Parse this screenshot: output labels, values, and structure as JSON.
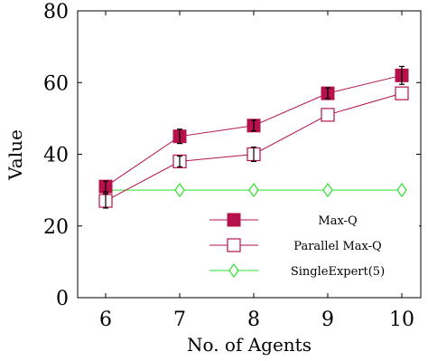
{
  "chart_data": {
    "type": "line",
    "xlabel": "No. of Agents",
    "ylabel": "Value",
    "x": [
      6,
      7,
      8,
      9,
      10
    ],
    "xlim": [
      6,
      10
    ],
    "ylim": [
      0,
      80
    ],
    "yticks": [
      0,
      20,
      40,
      60,
      80
    ],
    "grid": false,
    "legend_position": "bottom-right",
    "series": [
      {
        "name": "Max-Q",
        "marker": "filled-square",
        "color": "#b5124c",
        "values": [
          31,
          45,
          48,
          57,
          62
        ],
        "error": [
          1.5,
          2,
          1.5,
          1.5,
          2.5
        ]
      },
      {
        "name": "Parallel Max-Q",
        "marker": "open-square",
        "color": "#b5124c",
        "values": [
          27,
          38,
          40,
          51,
          57
        ],
        "error": [
          2,
          1.5,
          2,
          0,
          0
        ]
      },
      {
        "name": "SingleExpert(5)",
        "marker": "open-diamond",
        "color": "#2ee02e",
        "values": [
          30,
          30,
          30,
          30,
          30
        ],
        "error": [
          0,
          0,
          0,
          0,
          0
        ]
      }
    ]
  }
}
